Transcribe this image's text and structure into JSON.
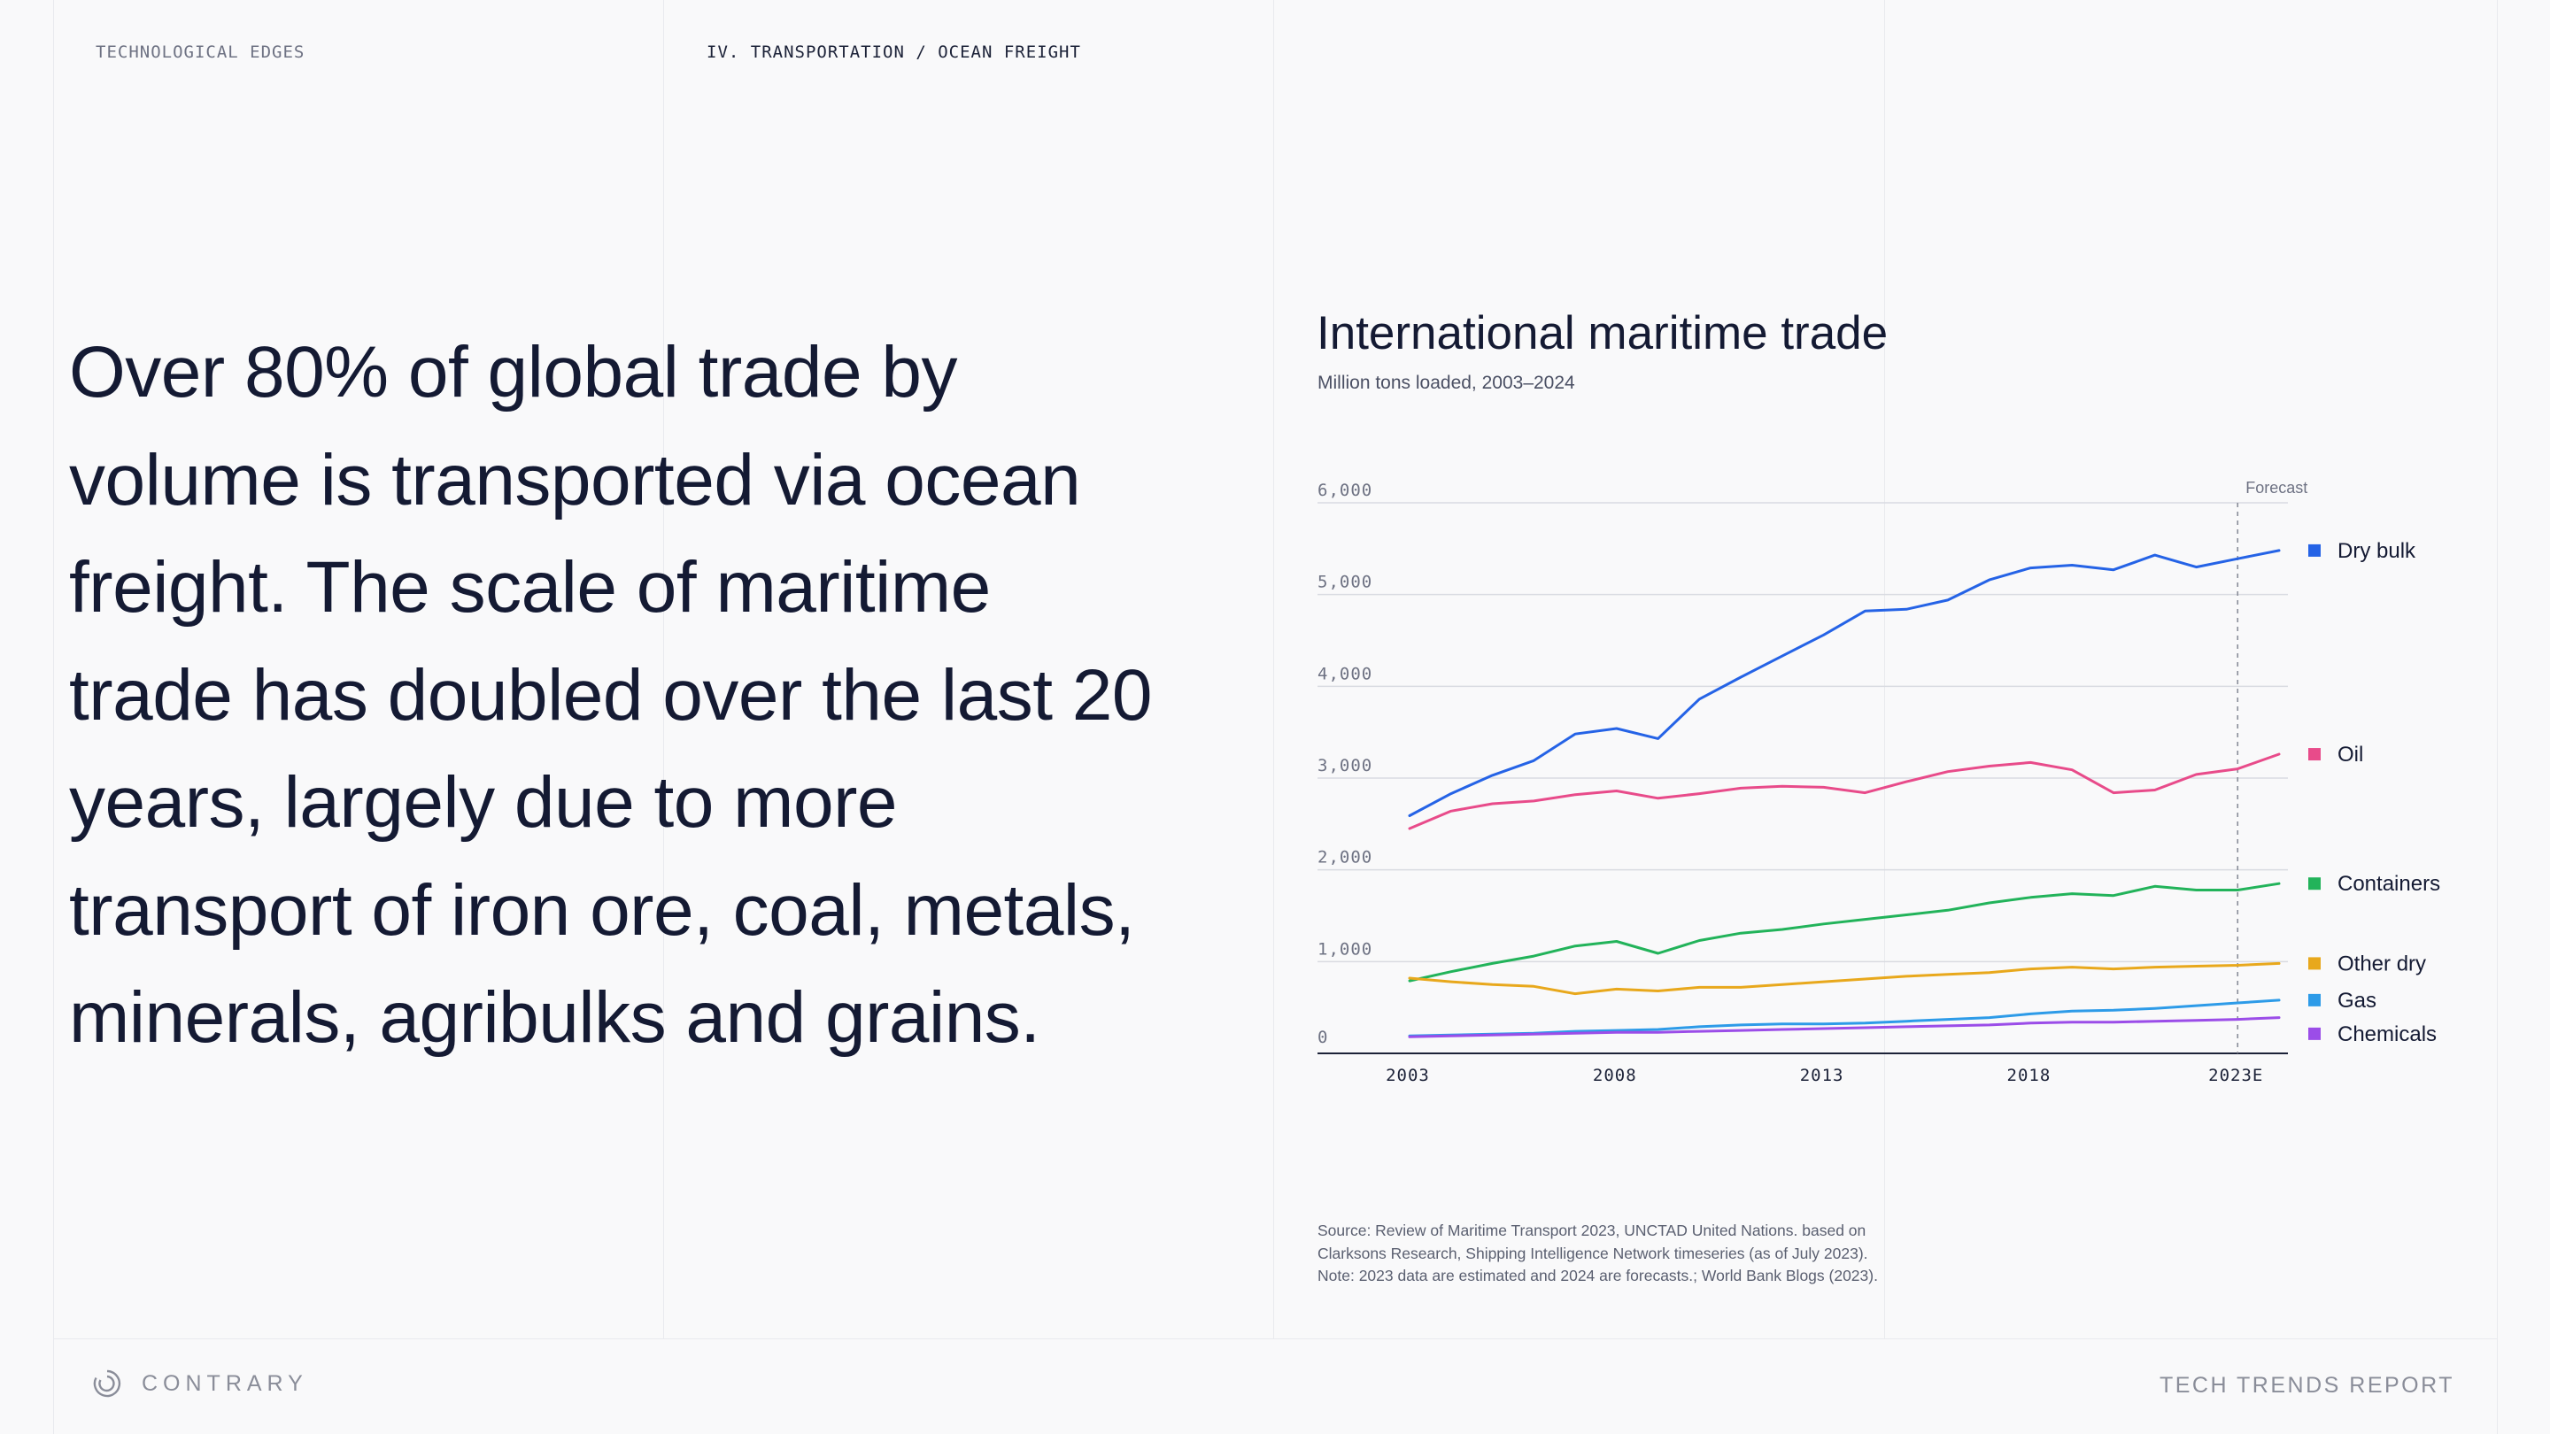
{
  "header": {
    "section_left": "TECHNOLOGICAL EDGES",
    "section_right": "IV. TRANSPORTATION / OCEAN FREIGHT"
  },
  "headline": "Over 80% of global trade by volume is transported via ocean freight. The scale of maritime trade has doubled over the last 20 years, largely due to more transport of iron ore, coal, metals, minerals, agribulks and grains.",
  "source_note": "Source: Review of Maritime Transport 2023, UNCTAD United Nations. based on Clarksons Research, Shipping Intelligence Network timeseries (as of July 2023). Note: 2023 data are estimated and 2024 are forecasts.; World Bank Blogs (2023).",
  "footer": {
    "brand": "CONTRARY",
    "report": "TECH TRENDS REPORT"
  },
  "chart_data": {
    "type": "line",
    "title": "International maritime trade",
    "subtitle": "Million tons loaded, 2003–2024",
    "xlabel": "",
    "ylabel": "",
    "x": [
      2003,
      2004,
      2005,
      2006,
      2007,
      2008,
      2009,
      2010,
      2011,
      2012,
      2013,
      2014,
      2015,
      2016,
      2017,
      2018,
      2019,
      2020,
      2021,
      2022,
      2023,
      2024
    ],
    "x_tick_labels": [
      "2003",
      "2008",
      "2013",
      "2018",
      "2023E"
    ],
    "x_tick_values": [
      2003,
      2008,
      2013,
      2018,
      2023
    ],
    "y_ticks": [
      0,
      1000,
      2000,
      3000,
      4000,
      5000,
      6000
    ],
    "y_tick_labels": [
      "0",
      "1,000",
      "2,000",
      "3,000",
      "4,000",
      "5,000",
      "6,000"
    ],
    "ylim": [
      0,
      6000
    ],
    "forecast_x": 2023,
    "forecast_label": "Forecast",
    "grid": true,
    "legend_position": "right",
    "series": [
      {
        "name": "Dry bulk",
        "color": "#2563e6",
        "values": [
          2590,
          2830,
          3030,
          3190,
          3480,
          3540,
          3430,
          3860,
          4100,
          4330,
          4560,
          4820,
          4840,
          4940,
          5160,
          5290,
          5320,
          5270,
          5430,
          5300,
          5390,
          5480
        ]
      },
      {
        "name": "Oil",
        "color": "#e84b8a",
        "values": [
          2450,
          2640,
          2720,
          2750,
          2820,
          2860,
          2780,
          2830,
          2890,
          2910,
          2900,
          2840,
          2960,
          3070,
          3130,
          3170,
          3090,
          2840,
          2870,
          3040,
          3100,
          3260
        ]
      },
      {
        "name": "Containers",
        "color": "#22b35a",
        "values": [
          790,
          890,
          980,
          1060,
          1170,
          1220,
          1090,
          1230,
          1310,
          1350,
          1410,
          1460,
          1510,
          1560,
          1640,
          1700,
          1740,
          1720,
          1820,
          1780,
          1780,
          1850
        ]
      },
      {
        "name": "Other dry",
        "color": "#e8a81c",
        "values": [
          820,
          780,
          750,
          730,
          650,
          700,
          680,
          720,
          720,
          750,
          780,
          810,
          840,
          860,
          880,
          920,
          940,
          920,
          940,
          950,
          960,
          980
        ]
      },
      {
        "name": "Gas",
        "color": "#2d9be8",
        "values": [
          190,
          200,
          210,
          220,
          240,
          250,
          260,
          290,
          310,
          320,
          320,
          330,
          350,
          370,
          390,
          430,
          460,
          470,
          490,
          520,
          550,
          580
        ]
      },
      {
        "name": "Chemicals",
        "color": "#9b4de8",
        "values": [
          180,
          190,
          200,
          210,
          220,
          230,
          230,
          240,
          250,
          260,
          270,
          280,
          290,
          300,
          310,
          330,
          340,
          340,
          350,
          360,
          370,
          390
        ]
      }
    ]
  }
}
